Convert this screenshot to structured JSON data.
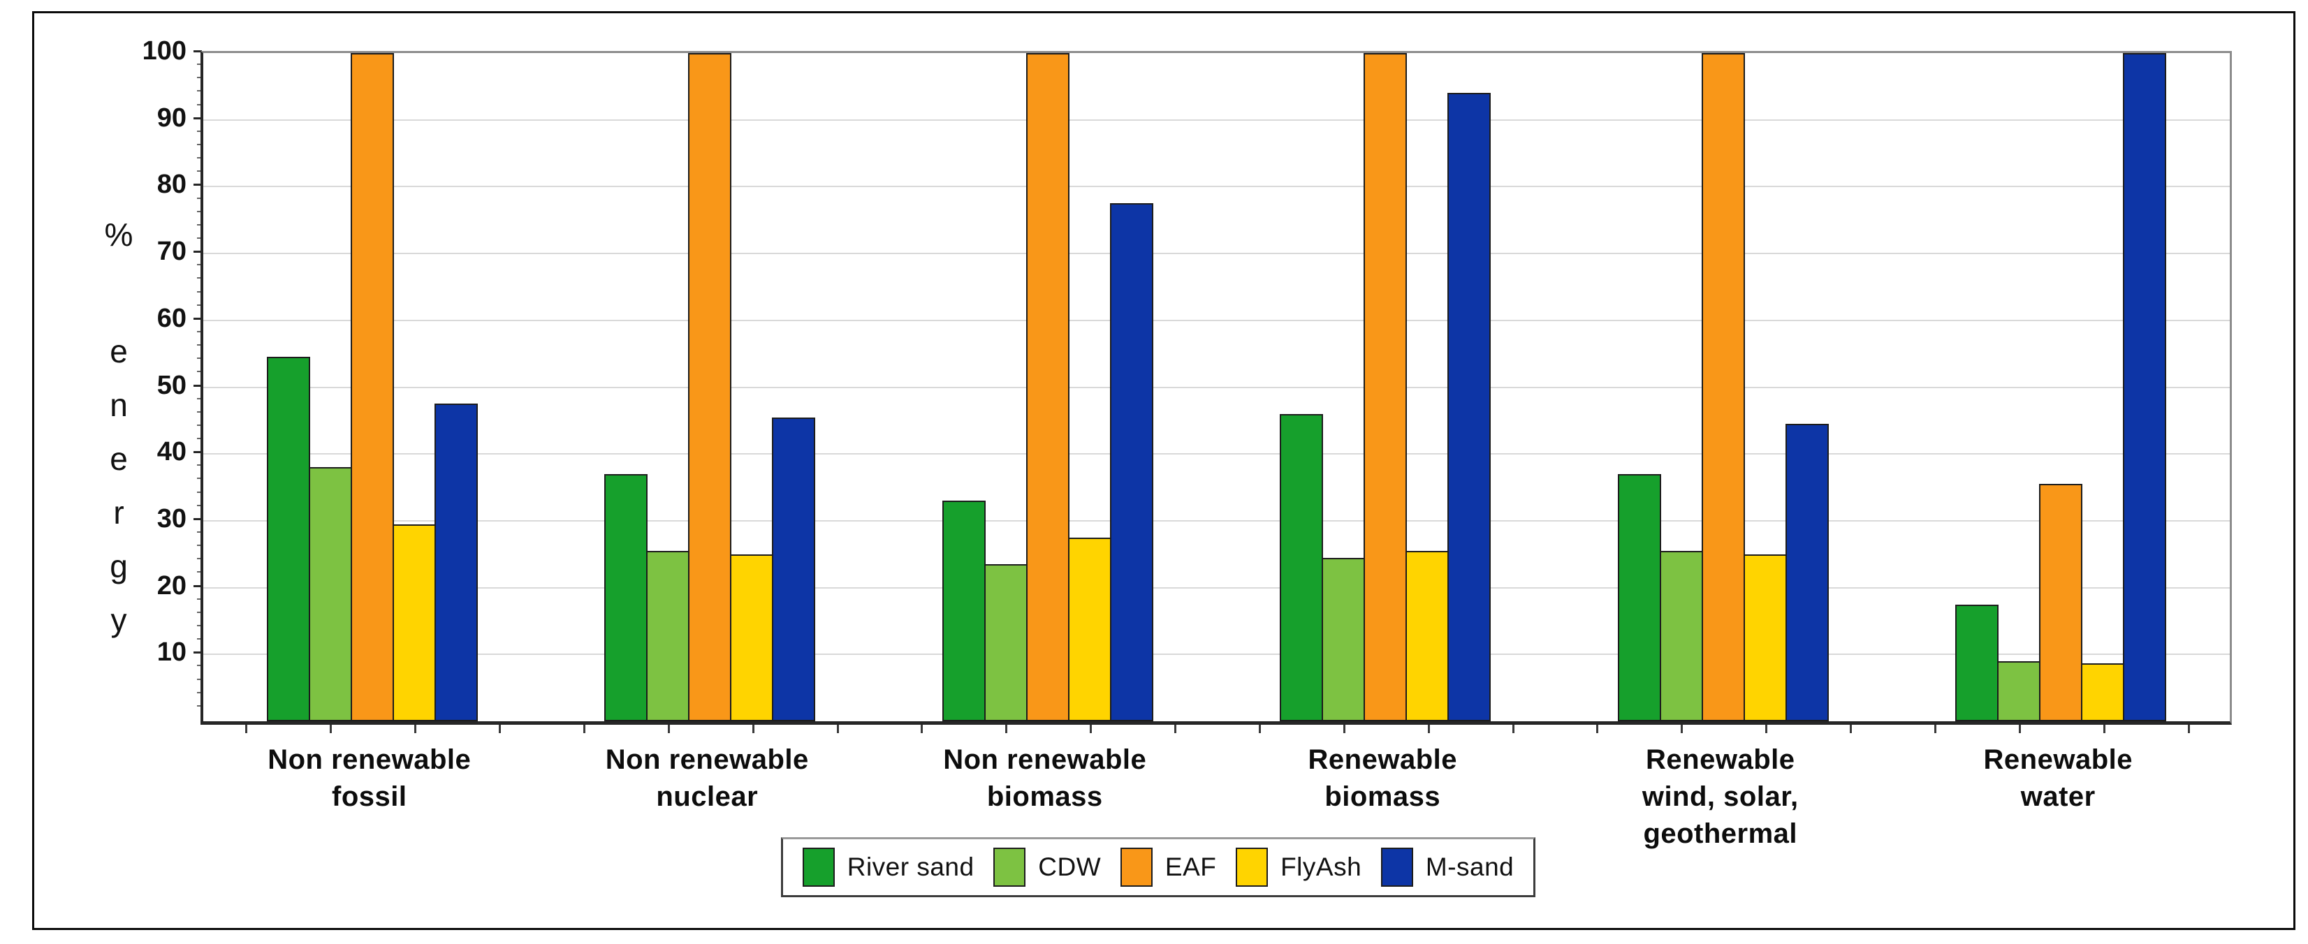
{
  "chart_data": {
    "type": "bar",
    "title": "",
    "ylabel": "% energy",
    "ylabel_chars": [
      "%",
      "e",
      "n",
      "e",
      "r",
      "g",
      "y"
    ],
    "ylim": [
      0,
      100
    ],
    "yticks": [
      10,
      20,
      30,
      40,
      50,
      60,
      70,
      80,
      90,
      100
    ],
    "grid": true,
    "legend_position": "bottom-center",
    "categories": [
      [
        "Non renewable",
        "fossil"
      ],
      [
        "Non renewable",
        "nuclear"
      ],
      [
        "Non renewable",
        "biomass"
      ],
      [
        "Renewable",
        "biomass"
      ],
      [
        "Renewable",
        "wind, solar,",
        "geothermal"
      ],
      [
        "Renewable",
        "water"
      ]
    ],
    "series": [
      {
        "name": "River sand",
        "color": "#16A02C",
        "values": [
          54.5,
          37,
          33,
          46,
          37,
          17.5
        ]
      },
      {
        "name": "CDW",
        "color": "#7DC242",
        "values": [
          38,
          25.5,
          23.5,
          24.5,
          25.5,
          9
        ]
      },
      {
        "name": "EAF",
        "color": "#F99718",
        "values": [
          100,
          100,
          100,
          100,
          100,
          35.5
        ]
      },
      {
        "name": "FlyAsh",
        "color": "#FFD400",
        "values": [
          29.5,
          25,
          27.5,
          25.5,
          25,
          8.7
        ]
      },
      {
        "name": "M-sand",
        "color": "#0D35A6",
        "values": [
          47.5,
          45.5,
          77.5,
          94,
          44.5,
          100
        ]
      }
    ]
  },
  "colors": {
    "gridline": "#d9d9d9",
    "axis": "#262626",
    "frame": "#8c8c8c",
    "outer_border": "#0a0a0a",
    "bar_outline": "#1c1c1c",
    "background": "#ffffff"
  }
}
